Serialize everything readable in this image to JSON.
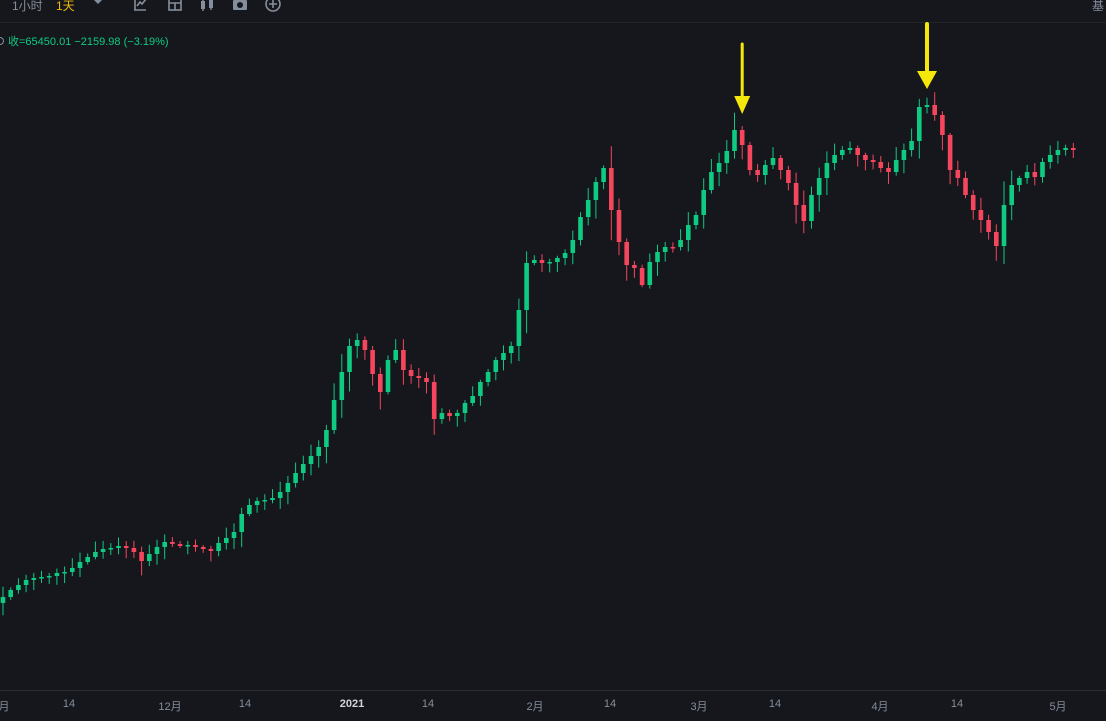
{
  "toolbar": {
    "timeframes": [
      "1小时",
      "1天"
    ],
    "active_timeframe": "1天",
    "icons": [
      "indicator-icon",
      "template-icon",
      "candle-type-icon",
      "screenshot-icon",
      "add-icon"
    ],
    "right_label": "基"
  },
  "legend": {
    "text": "收=65450.01  −2159.98 (−3.19%)"
  },
  "colors": {
    "up": "#0ecb81",
    "down": "#f6465d",
    "background": "#16171c",
    "arrow": "#f5e60b"
  },
  "x_axis_labels": [
    {
      "label": "月",
      "x": 0
    },
    {
      "label": "14",
      "x": 69
    },
    {
      "label": "12月",
      "x": 170
    },
    {
      "label": "14",
      "x": 245
    },
    {
      "label": "2021",
      "x": 352,
      "year": true
    },
    {
      "label": "14",
      "x": 428
    },
    {
      "label": "2月",
      "x": 535
    },
    {
      "label": "14",
      "x": 610
    },
    {
      "label": "3月",
      "x": 699
    },
    {
      "label": "14",
      "x": 775
    },
    {
      "label": "4月",
      "x": 880
    },
    {
      "label": "14",
      "x": 957
    },
    {
      "label": "5月",
      "x": 1058
    }
  ],
  "chart_data": {
    "type": "candlestick",
    "path": [
      597,
      590,
      585,
      580,
      578,
      577,
      576,
      573,
      572,
      568,
      562,
      557,
      552,
      549,
      548,
      546,
      548,
      552,
      561,
      554,
      547,
      542,
      544,
      546,
      545,
      547,
      549,
      551,
      543,
      538,
      532,
      514,
      505,
      501,
      500,
      498,
      492,
      483,
      473,
      464,
      456,
      447,
      430,
      400,
      372,
      346,
      340,
      350,
      374,
      392,
      360,
      350,
      370,
      376,
      378,
      382,
      419,
      413,
      416,
      413,
      403,
      396,
      382,
      372,
      360,
      353,
      346,
      310,
      263,
      260,
      263,
      262,
      258,
      253,
      240,
      217,
      200,
      182,
      168,
      210,
      242,
      265,
      268,
      285,
      262,
      252,
      247,
      247,
      240,
      225,
      215,
      190,
      172,
      163,
      151,
      130,
      145,
      170,
      175,
      165,
      158,
      170,
      183,
      205,
      221,
      195,
      178,
      163,
      155,
      150,
      148,
      155,
      160,
      162,
      168,
      172,
      160,
      150,
      141,
      107,
      105,
      115,
      135,
      170,
      178,
      195,
      210,
      220,
      232,
      246,
      205,
      185,
      178,
      172,
      177,
      162,
      155,
      150,
      148,
      150
    ],
    "arrows": [
      {
        "candle_index": 96
      },
      {
        "candle_index": 120
      }
    ]
  }
}
